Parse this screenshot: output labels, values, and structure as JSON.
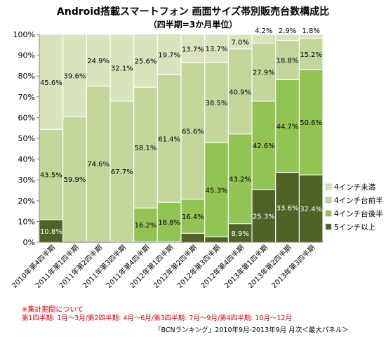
{
  "title": "Android搭載スマートフォン 画面サイズ帯別販売台数構成比",
  "subtitle": "（四半期=3か月単位）",
  "chart_data": {
    "type": "bar",
    "stacked": true,
    "normalized": true,
    "categories": [
      "2010年第4四半期",
      "2011年第1四半期",
      "2011年第2四半期",
      "2011年第3四半期",
      "2011年第4四半期",
      "2012年第1四半期",
      "2012年第2四半期",
      "2012年第3四半期",
      "2012年第4四半期",
      "2013年第1四半期",
      "2013年第2四半期",
      "2013年第3四半期"
    ],
    "y_tick_labels": [
      "0%",
      "10%",
      "20%",
      "30%",
      "40%",
      "50%",
      "60%",
      "70%",
      "80%",
      "90%",
      "100%"
    ],
    "ylim": [
      0,
      100
    ],
    "grid": true,
    "legend_position": "right",
    "series": [
      {
        "name": "5インチ以上",
        "color": "#4f6228",
        "values": [
          10.8,
          0.5,
          0.5,
          0.2,
          0.3,
          0.4,
          4.3,
          2.6,
          8.9,
          25.3,
          33.6,
          32.4
        ],
        "labels": [
          "10.8%",
          "",
          "",
          "",
          "",
          "",
          "",
          "",
          "8.9%",
          "25.3%",
          "33.6%",
          "32.4%"
        ]
      },
      {
        "name": "4インチ台後半",
        "color": "#92c353",
        "values": [
          0,
          0,
          0,
          0,
          16.2,
          18.8,
          16.4,
          45.3,
          43.2,
          42.6,
          44.7,
          50.6
        ],
        "labels": [
          "",
          "",
          "",
          "",
          "16.2%",
          "18.8%",
          "16.4%",
          "45.3%",
          "43.2%",
          "42.6%",
          "44.7%",
          "50.6%"
        ]
      },
      {
        "name": "4インチ台前半",
        "color": "#c3d69b",
        "values": [
          43.5,
          59.9,
          74.6,
          67.7,
          58.1,
          61.4,
          65.6,
          38.5,
          40.9,
          27.9,
          18.8,
          15.2
        ],
        "labels": [
          "43.5%",
          "59.9%",
          "74.6%",
          "67.7%",
          "58.1%",
          "61.4%",
          "65.6%",
          "38.5%",
          "40.9%",
          "27.9%",
          "18.8%",
          "15.2%"
        ]
      },
      {
        "name": "4インチ未満",
        "color": "#d7e4bd",
        "values": [
          45.6,
          39.6,
          24.9,
          32.1,
          25.6,
          19.7,
          13.7,
          13.7,
          7.0,
          4.2,
          2.9,
          1.8
        ],
        "labels": [
          "45.6%",
          "39.6%",
          "24.9%",
          "32.1%",
          "25.6%",
          "19.7%",
          "13.7%",
          "13.7%",
          "7.0%",
          "4.2%",
          "2.9%",
          "1.8%"
        ]
      }
    ],
    "legend_order": [
      "4インチ未満",
      "4インチ台前半",
      "4インチ台後半",
      "5インチ以上"
    ]
  },
  "notes": {
    "heading": "※集計期間について",
    "detail": "第1四半期: 1月～3月/第2四半期: 4月～6月/第3四半期: 7月～9月/第4四半期: 10月～12月",
    "source": "「BCNランキング」2010年9月-2013年9月 月次＜最大パネル＞"
  }
}
